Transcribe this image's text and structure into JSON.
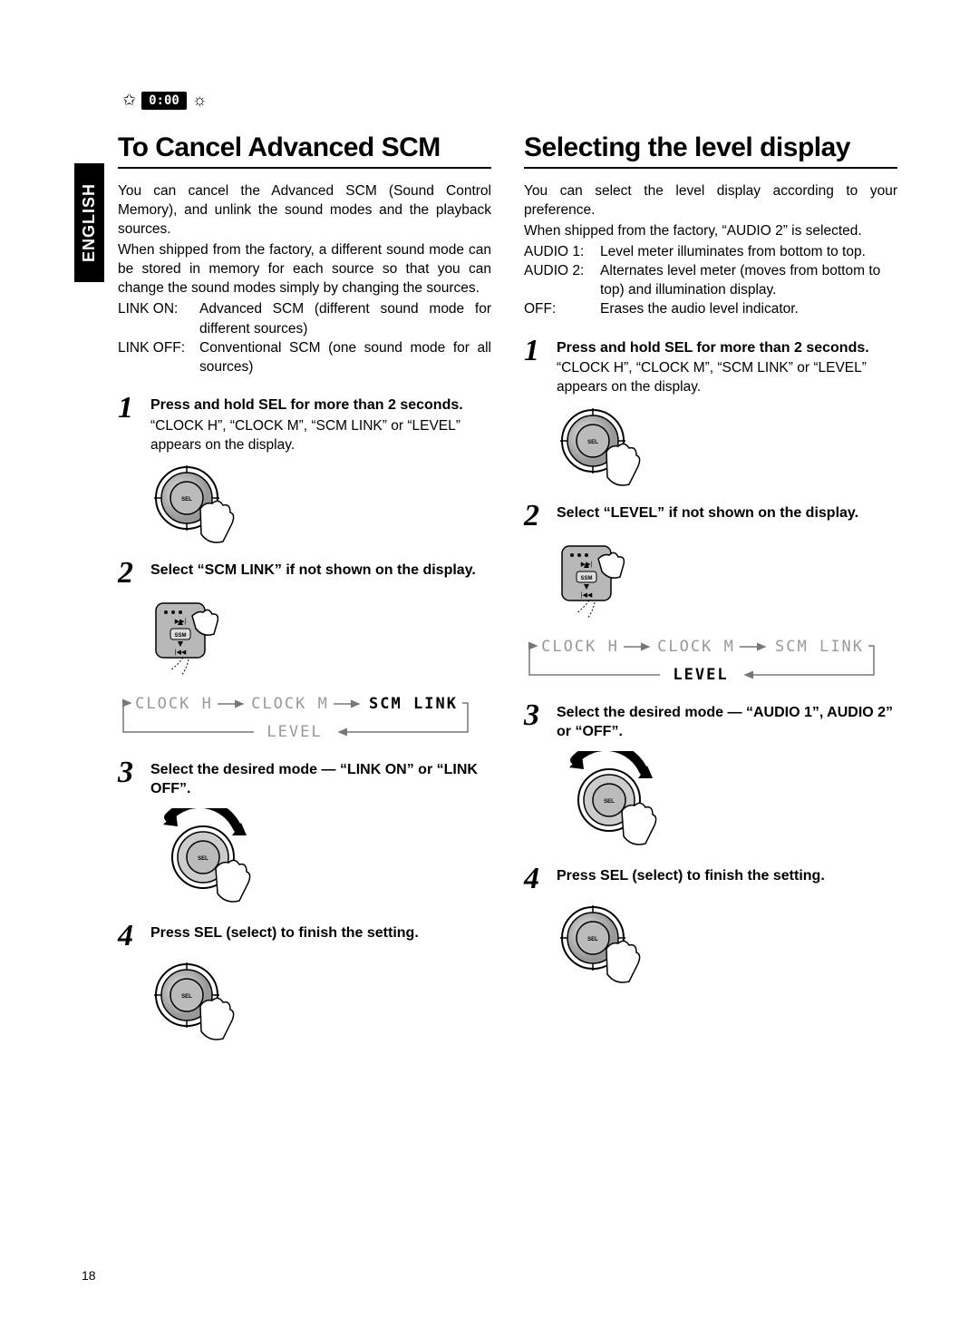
{
  "header": {
    "clock_badge": "0:00"
  },
  "language_tab": "ENGLISH",
  "page_number": "18",
  "left": {
    "title": "To Cancel Advanced SCM",
    "intro1": "You can cancel the Advanced SCM (Sound Control Memory), and unlink the sound modes and the playback sources.",
    "intro2": "When shipped from the factory, a different sound mode can be stored in memory for each source so that you can change the sound modes simply by changing the sources.",
    "defs": [
      {
        "k": "LINK ON:",
        "v": "Advanced SCM (different sound mode for different sources)"
      },
      {
        "k": "LINK OFF:",
        "v": "Conventional SCM (one sound mode for all sources)"
      }
    ],
    "steps": [
      {
        "n": "1",
        "title": "Press and hold SEL for more than 2 seconds.",
        "detail": "“CLOCK H”, “CLOCK M”, “SCM LINK” or “LEVEL” appears on the display.",
        "graphic": "dial-press"
      },
      {
        "n": "2",
        "title": "Select “SCM LINK” if not shown on the display.",
        "detail": "",
        "graphic": "rocker+flow",
        "flow_active": "SCM LINK"
      },
      {
        "n": "3",
        "title": "Select the desired mode — “LINK ON” or “LINK OFF”.",
        "detail": "",
        "graphic": "dial-turn"
      },
      {
        "n": "4",
        "title": "Press SEL (select) to finish the setting.",
        "detail": "",
        "graphic": "dial-press"
      }
    ]
  },
  "right": {
    "title": "Selecting the level display",
    "intro1": "You can select the level display according to your preference.",
    "intro2": "When shipped from the factory, “AUDIO 2” is selected.",
    "defs": [
      {
        "k": "AUDIO 1:",
        "v": "Level meter illuminates from bottom to top."
      },
      {
        "k": "AUDIO 2:",
        "v": "Alternates level meter (moves from bottom to top) and illumination display."
      },
      {
        "k": "OFF:",
        "v": "Erases the audio level indicator."
      }
    ],
    "steps": [
      {
        "n": "1",
        "title": "Press and hold SEL for more than 2 seconds.",
        "detail": "“CLOCK H”, “CLOCK M”, “SCM LINK” or “LEVEL” appears on the display.",
        "graphic": "dial-press"
      },
      {
        "n": "2",
        "title": "Select “LEVEL” if not shown on the display.",
        "detail": "",
        "graphic": "rocker+flow",
        "flow_active": "LEVEL"
      },
      {
        "n": "3",
        "title": "Select the desired mode — “AUDIO 1”, AUDIO 2” or “OFF”.",
        "detail": "",
        "graphic": "dial-turn"
      },
      {
        "n": "4",
        "title": "Press SEL (select) to finish the setting.",
        "detail": "",
        "graphic": "dial-press"
      }
    ]
  },
  "flow_sequence": [
    "CLOCK H",
    "CLOCK M",
    "SCM LINK",
    "LEVEL"
  ],
  "colors": {
    "text": "#000000",
    "dim_text": "#888888",
    "bg": "#ffffff",
    "panel_fill": "#b8b8b8"
  },
  "fonts": {
    "heading_size": 30,
    "body_size": 15.5,
    "step_num_size": 34,
    "step_title_size": 16,
    "lcd_font": "monospace"
  }
}
